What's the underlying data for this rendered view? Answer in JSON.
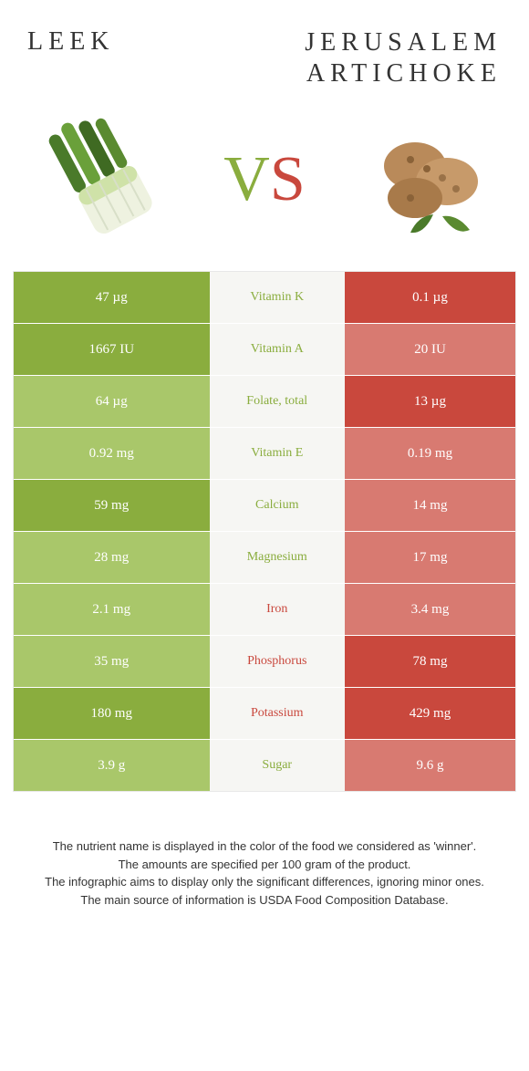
{
  "header": {
    "left_title": "LEEK",
    "right_title_line1": "JERUSALEM",
    "right_title_line2": "ARTICHOKE"
  },
  "vs": {
    "v": "V",
    "s": "S"
  },
  "colors": {
    "green_dark": "#8aad3e",
    "green_light": "#a9c76a",
    "red_dark": "#c9483d",
    "red_light": "#d87a71",
    "mid_bg": "#f6f6f3"
  },
  "rows": [
    {
      "left": "47 µg",
      "mid": "Vitamin K",
      "right": "0.1 µg",
      "winner": "left",
      "left_shade": "dark",
      "right_shade": "dark"
    },
    {
      "left": "1667 IU",
      "mid": "Vitamin A",
      "right": "20 IU",
      "winner": "left",
      "left_shade": "dark",
      "right_shade": "light"
    },
    {
      "left": "64 µg",
      "mid": "Folate, total",
      "right": "13 µg",
      "winner": "left",
      "left_shade": "light",
      "right_shade": "dark"
    },
    {
      "left": "0.92 mg",
      "mid": "Vitamin E",
      "right": "0.19 mg",
      "winner": "left",
      "left_shade": "light",
      "right_shade": "light"
    },
    {
      "left": "59 mg",
      "mid": "Calcium",
      "right": "14 mg",
      "winner": "left",
      "left_shade": "dark",
      "right_shade": "light"
    },
    {
      "left": "28 mg",
      "mid": "Magnesium",
      "right": "17 mg",
      "winner": "left",
      "left_shade": "light",
      "right_shade": "light"
    },
    {
      "left": "2.1 mg",
      "mid": "Iron",
      "right": "3.4 mg",
      "winner": "right",
      "left_shade": "light",
      "right_shade": "light"
    },
    {
      "left": "35 mg",
      "mid": "Phosphorus",
      "right": "78 mg",
      "winner": "right",
      "left_shade": "light",
      "right_shade": "dark"
    },
    {
      "left": "180 mg",
      "mid": "Potassium",
      "right": "429 mg",
      "winner": "right",
      "left_shade": "dark",
      "right_shade": "dark"
    },
    {
      "left": "3.9 g",
      "mid": "Sugar",
      "right": "9.6 g",
      "winner": "left",
      "left_shade": "light",
      "right_shade": "light"
    }
  ],
  "footer": {
    "line1": "The nutrient name is displayed in the color of the food we considered as 'winner'.",
    "line2": "The amounts are specified per 100 gram of the product.",
    "line3": "The infographic aims to display only the significant differences, ignoring minor ones.",
    "line4": "The main source of information is USDA Food Composition Database."
  }
}
